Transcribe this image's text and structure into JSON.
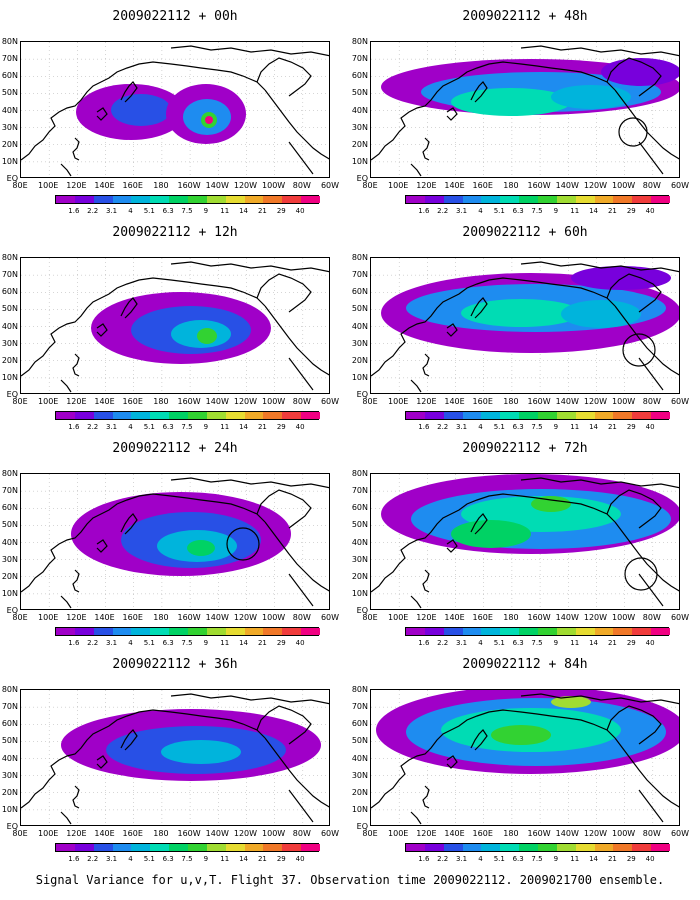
{
  "panels": [
    {
      "title": "2009022112 + 00h"
    },
    {
      "title": "2009022112 + 48h"
    },
    {
      "title": "2009022112 + 12h"
    },
    {
      "title": "2009022112 + 60h"
    },
    {
      "title": "2009022112 + 24h"
    },
    {
      "title": "2009022112 + 72h"
    },
    {
      "title": "2009022112 + 36h"
    },
    {
      "title": "2009022112 + 84h"
    }
  ],
  "axes": {
    "lon_labels": [
      "80E",
      "100E",
      "120E",
      "140E",
      "160E",
      "180",
      "160W",
      "140W",
      "120W",
      "100W",
      "80W",
      "60W"
    ],
    "lat_labels": [
      "80N",
      "70N",
      "60N",
      "50N",
      "40N",
      "30N",
      "20N",
      "10N",
      "EQ"
    ]
  },
  "colorbar": {
    "levels": [
      "1.6",
      "2.2",
      "3.1",
      "4",
      "5.1",
      "6.3",
      "7.5",
      "9",
      "11",
      "14",
      "21",
      "29",
      "40"
    ],
    "colors": [
      "#a000c8",
      "#7800dc",
      "#2850e6",
      "#1e8cf0",
      "#00b4dc",
      "#00dcb4",
      "#00d264",
      "#32d232",
      "#a0dc32",
      "#e6dc32",
      "#f0aa28",
      "#f07828",
      "#f03c3c",
      "#f00082"
    ]
  },
  "footer": "Signal Variance for u,v,T. Flight 37. Observation time 2009022112. 2009021700 ensemble."
}
